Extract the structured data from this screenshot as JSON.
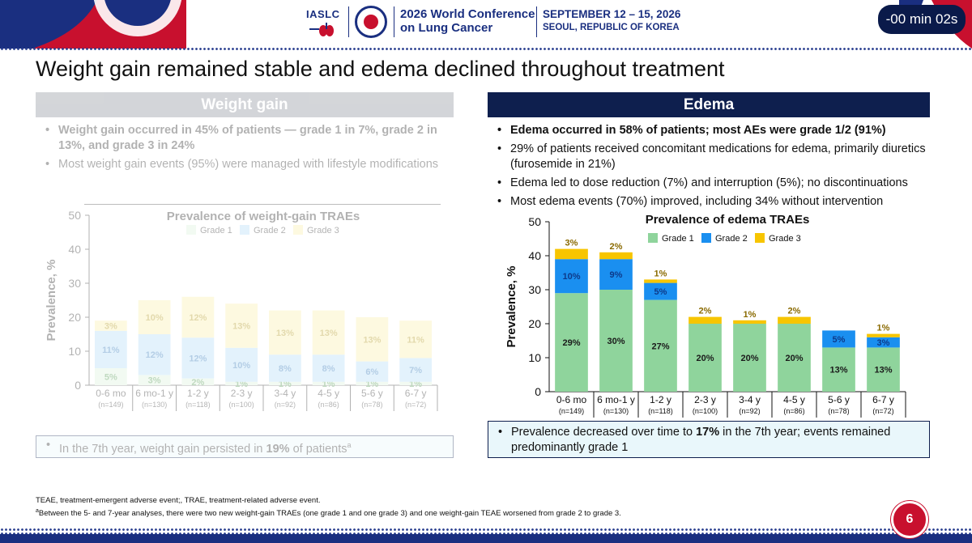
{
  "header": {
    "org": "IASLC",
    "conference_title": "2026 World Conference on Lung Cancer",
    "dates": "SEPTEMBER 12 – 15, 2026",
    "location": "SEOUL, REPUBLIC OF KOREA",
    "timer": "-00 min 02s"
  },
  "slide": {
    "title": "Weight gain remained stable and edema declined throughout treatment",
    "page_number": "6"
  },
  "left_panel": {
    "heading": "Weight gain",
    "bullets": [
      "Weight gain occurred in 45% of patients — grade 1 in 7%, grade 2 in 13%, and grade 3 in 24%",
      "Most weight gain events (95%) were managed with lifestyle modifications"
    ],
    "note_prefix": "In the 7th year, weight gain persisted in ",
    "note_bold": "19%",
    "note_suffix": " of patients",
    "note_sup": "a"
  },
  "right_panel": {
    "heading": "Edema",
    "bullets": [
      "Edema occurred in 58% of patients; most AEs were grade 1/2 (91%)",
      "29% of patients received concomitant medications for edema, primarily diuretics (furosemide in 21%)",
      "Edema led to dose reduction (7%) and interruption (5%); no discontinuations",
      "Most edema events (70%) improved, including 34% without intervention"
    ],
    "note_prefix": "Prevalence decreased over time to ",
    "note_bold": "17%",
    "note_suffix": " in the 7th year; events remained predominantly grade 1"
  },
  "footnotes": [
    "TEAE, treatment-emergent adverse event;, TRAE, treatment-related adverse event.",
    "Between the 5- and 7-year analyses, there were two new weight-gain TRAEs (one grade 1 and one grade 3) and one weight-gain TEAE worsened from grade 2 to grade 3."
  ],
  "footnote_marker": "a",
  "colors": {
    "grade1": "#8fd49c",
    "grade2": "#1a8ff0",
    "grade3": "#f7c500",
    "grade1_faded": "#d8f0d8",
    "grade2_faded": "#a9d8f7",
    "grade3_faded": "#fbeea0",
    "navy": "#0e1f4e",
    "brand_red": "#c8102e"
  },
  "chart_data": [
    {
      "type": "bar",
      "stacked": true,
      "title": "Prevalence of weight-gain TRAEs",
      "ylabel": "Prevalence, %",
      "ylim": [
        0,
        50
      ],
      "yticks": [
        0,
        10,
        20,
        30,
        40,
        50
      ],
      "categories": [
        "0-6 mo",
        "6 mo-1 y",
        "1-2 y",
        "2-3 y",
        "3-4 y",
        "4-5 y",
        "5-6 y",
        "6-7 y"
      ],
      "n_labels": [
        "(n=149)",
        "(n=130)",
        "(n=118)",
        "(n=100)",
        "(n=92)",
        "(n=86)",
        "(n=78)",
        "(n=72)"
      ],
      "series": [
        {
          "name": "Grade 1",
          "values": [
            5,
            3,
            2,
            1,
            1,
            1,
            1,
            1
          ],
          "labels": [
            "5%",
            "3%",
            "2%",
            "1%",
            "1%",
            "1%",
            "1%",
            "1%"
          ]
        },
        {
          "name": "Grade 2",
          "values": [
            11,
            12,
            12,
            10,
            8,
            8,
            6,
            7
          ],
          "labels": [
            "11%",
            "12%",
            "12%",
            "10%",
            "8%",
            "8%",
            "6%",
            "7%"
          ]
        },
        {
          "name": "Grade 3",
          "values": [
            3,
            10,
            12,
            13,
            13,
            13,
            13,
            11
          ],
          "labels": [
            "3%",
            "10%",
            "12%",
            "13%",
            "13%",
            "13%",
            "13%",
            "11%"
          ]
        }
      ],
      "legend": "top"
    },
    {
      "type": "bar",
      "stacked": true,
      "title": "Prevalence of edema TRAEs",
      "ylabel": "Prevalence, %",
      "ylim": [
        0,
        50
      ],
      "yticks": [
        0,
        10,
        20,
        30,
        40,
        50
      ],
      "categories": [
        "0-6 mo",
        "6 mo-1 y",
        "1-2 y",
        "2-3 y",
        "3-4 y",
        "4-5 y",
        "5-6 y",
        "6-7 y"
      ],
      "n_labels": [
        "(n=149)",
        "(n=130)",
        "(n=118)",
        "(n=100)",
        "(n=92)",
        "(n=86)",
        "(n=78)",
        "(n=72)"
      ],
      "series": [
        {
          "name": "Grade 1",
          "values": [
            29,
            30,
            27,
            20,
            20,
            20,
            13,
            13
          ],
          "labels": [
            "29%",
            "30%",
            "27%",
            "20%",
            "20%",
            "20%",
            "13%",
            "13%"
          ]
        },
        {
          "name": "Grade 2",
          "values": [
            10,
            9,
            5,
            0,
            0,
            0,
            5,
            3
          ],
          "labels": [
            "10%",
            "9%",
            "5%",
            "",
            "",
            "",
            "5%",
            "3%"
          ]
        },
        {
          "name": "Grade 3",
          "values": [
            3,
            2,
            1,
            2,
            1,
            2,
            0,
            1
          ],
          "labels": [
            "3%",
            "2%",
            "1%",
            "2%",
            "1%",
            "2%",
            "",
            "1%"
          ]
        }
      ],
      "legend": "top"
    }
  ]
}
